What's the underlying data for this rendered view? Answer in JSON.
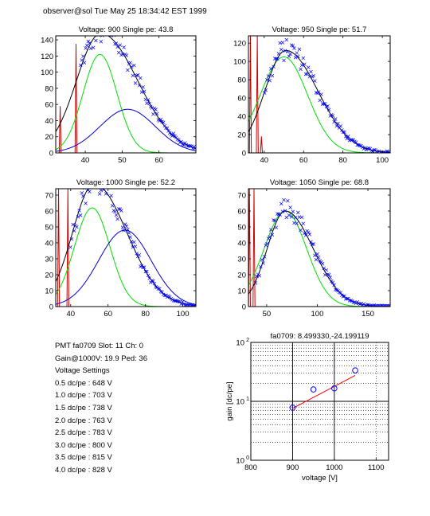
{
  "header": "observer@sol  Tue May 25 18:34:42 EST 1999",
  "info": {
    "line1": "PMT fa0709 Slot: 11 Ch: 0",
    "line2": "Gain@1000V: 19.9 Ped: 36",
    "line3": "Voltage Settings",
    "settings": [
      "0.5 dc/pe : 648 V",
      "1.0 dc/pe : 703 V",
      "1.5 dc/pe : 738 V",
      "2.0 dc/pe : 763 V",
      "2.5 dc/pe : 783 V",
      "3.0 dc/pe : 800 V",
      "3.5 dc/pe : 815 V",
      "4.0 dc/pe : 828 V"
    ]
  },
  "colors": {
    "data": "#0000ff",
    "fit": "#000000",
    "gauss1": "#00dd00",
    "gauss2": "#0000cc",
    "ped": "#cc0000",
    "trend": "#ff0000"
  },
  "chart_data": [
    {
      "type": "scatter",
      "title": "Voltage: 900 Single pe: 43.8",
      "xlim": [
        32,
        70
      ],
      "ylim": [
        0,
        145
      ],
      "xticks": [
        40,
        50,
        60
      ],
      "yticks": [
        0,
        20,
        40,
        60,
        80,
        100,
        120,
        140
      ],
      "peak": 44.2,
      "peak_height": 148,
      "width": 8,
      "gauss1": {
        "mu": 44,
        "amp": 122,
        "sigma": 4.6
      },
      "gauss2": {
        "mu": 51.5,
        "amp": 54,
        "sigma": 7.5
      },
      "ped": [
        {
          "x": 33.2,
          "h": 58
        },
        {
          "x": 37.5,
          "h": 135
        }
      ]
    },
    {
      "type": "scatter",
      "title": "Voltage: 950 Single pe: 51.7",
      "xlim": [
        32,
        104
      ],
      "ylim": [
        0,
        128
      ],
      "xticks": [
        40,
        60,
        80,
        100
      ],
      "yticks": [
        0,
        20,
        40,
        60,
        80,
        100,
        120
      ],
      "peak": 51,
      "peak_height": 112,
      "width": 13,
      "gauss1": {
        "mu": 50,
        "amp": 105,
        "sigma": 12
      },
      "gauss2": null,
      "ped": [
        {
          "x": 33,
          "h": 128
        },
        {
          "x": 36.5,
          "h": 128
        },
        {
          "x": 38.6,
          "h": 18
        }
      ]
    },
    {
      "type": "scatter",
      "title": "Voltage: 1000 Single pe: 52.2",
      "xlim": [
        32,
        107
      ],
      "ylim": [
        0,
        74
      ],
      "xticks": [
        40,
        60,
        80,
        100
      ],
      "yticks": [
        0,
        10,
        20,
        30,
        40,
        50,
        60,
        70
      ],
      "peak": 52.5,
      "peak_height": 77,
      "width": 14,
      "gauss1": {
        "mu": 51.5,
        "amp": 62,
        "sigma": 9.5
      },
      "gauss2": {
        "mu": 69,
        "amp": 48,
        "sigma": 14
      },
      "ped": [
        {
          "x": 33.5,
          "h": 74
        },
        {
          "x": 38.5,
          "h": 74
        }
      ]
    },
    {
      "type": "scatter",
      "title": "Voltage: 1050 Single pe: 68.8",
      "xlim": [
        32,
        172
      ],
      "ylim": [
        0,
        74
      ],
      "xticks": [
        50,
        100,
        150
      ],
      "yticks": [
        0,
        10,
        20,
        30,
        40,
        50,
        60,
        70
      ],
      "peak": 68.5,
      "peak_height": 60,
      "width": 22,
      "gauss1": {
        "mu": 68.5,
        "amp": 60,
        "sigma": 21
      },
      "gauss2": null,
      "ped": [
        {
          "x": 33,
          "h": 74
        },
        {
          "x": 37.5,
          "h": 74
        }
      ]
    },
    {
      "type": "scatter",
      "title": "fa0709: 8.499330,-24.199119",
      "xlabel": "voltage [V]",
      "ylabel": "gain [dc/pe]",
      "yscale": "log",
      "xlim": [
        800,
        1130
      ],
      "ylim": [
        1,
        100
      ],
      "xticks": [
        800,
        900,
        1000,
        1100
      ],
      "yticks": [
        1,
        10,
        100
      ],
      "ytick_labels": [
        {
          "base": "10",
          "exp": "0"
        },
        {
          "base": "10",
          "exp": "1"
        },
        {
          "base": "10",
          "exp": "2"
        }
      ],
      "x": [
        900,
        950,
        1000,
        1050
      ],
      "y": [
        7.8,
        15.9,
        16.6,
        33.5
      ],
      "fit_line": {
        "x": [
          900,
          1050
        ],
        "y": [
          7.6,
          27.5
        ]
      }
    }
  ]
}
